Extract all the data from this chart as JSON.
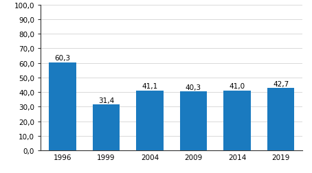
{
  "categories": [
    "1996",
    "1999",
    "2004",
    "2009",
    "2014",
    "2019"
  ],
  "values": [
    60.3,
    31.4,
    41.1,
    40.3,
    41.0,
    42.7
  ],
  "bar_color": "#1a7abf",
  "ylim": [
    0,
    100
  ],
  "yticks": [
    0,
    10,
    20,
    30,
    40,
    50,
    60,
    70,
    80,
    90,
    100
  ],
  "ytick_labels": [
    "0,0",
    "10,0",
    "20,0",
    "30,0",
    "40,0",
    "50,0",
    "60,0",
    "70,0",
    "80,0",
    "90,0",
    "100,0"
  ],
  "value_labels": [
    "60,3",
    "31,4",
    "41,1",
    "40,3",
    "41,0",
    "42,7"
  ],
  "bar_width": 0.62,
  "grid_color": "#d9d9d9",
  "background_color": "#ffffff",
  "label_fontsize": 7.5,
  "tick_fontsize": 7.5,
  "spine_color": "#333333"
}
